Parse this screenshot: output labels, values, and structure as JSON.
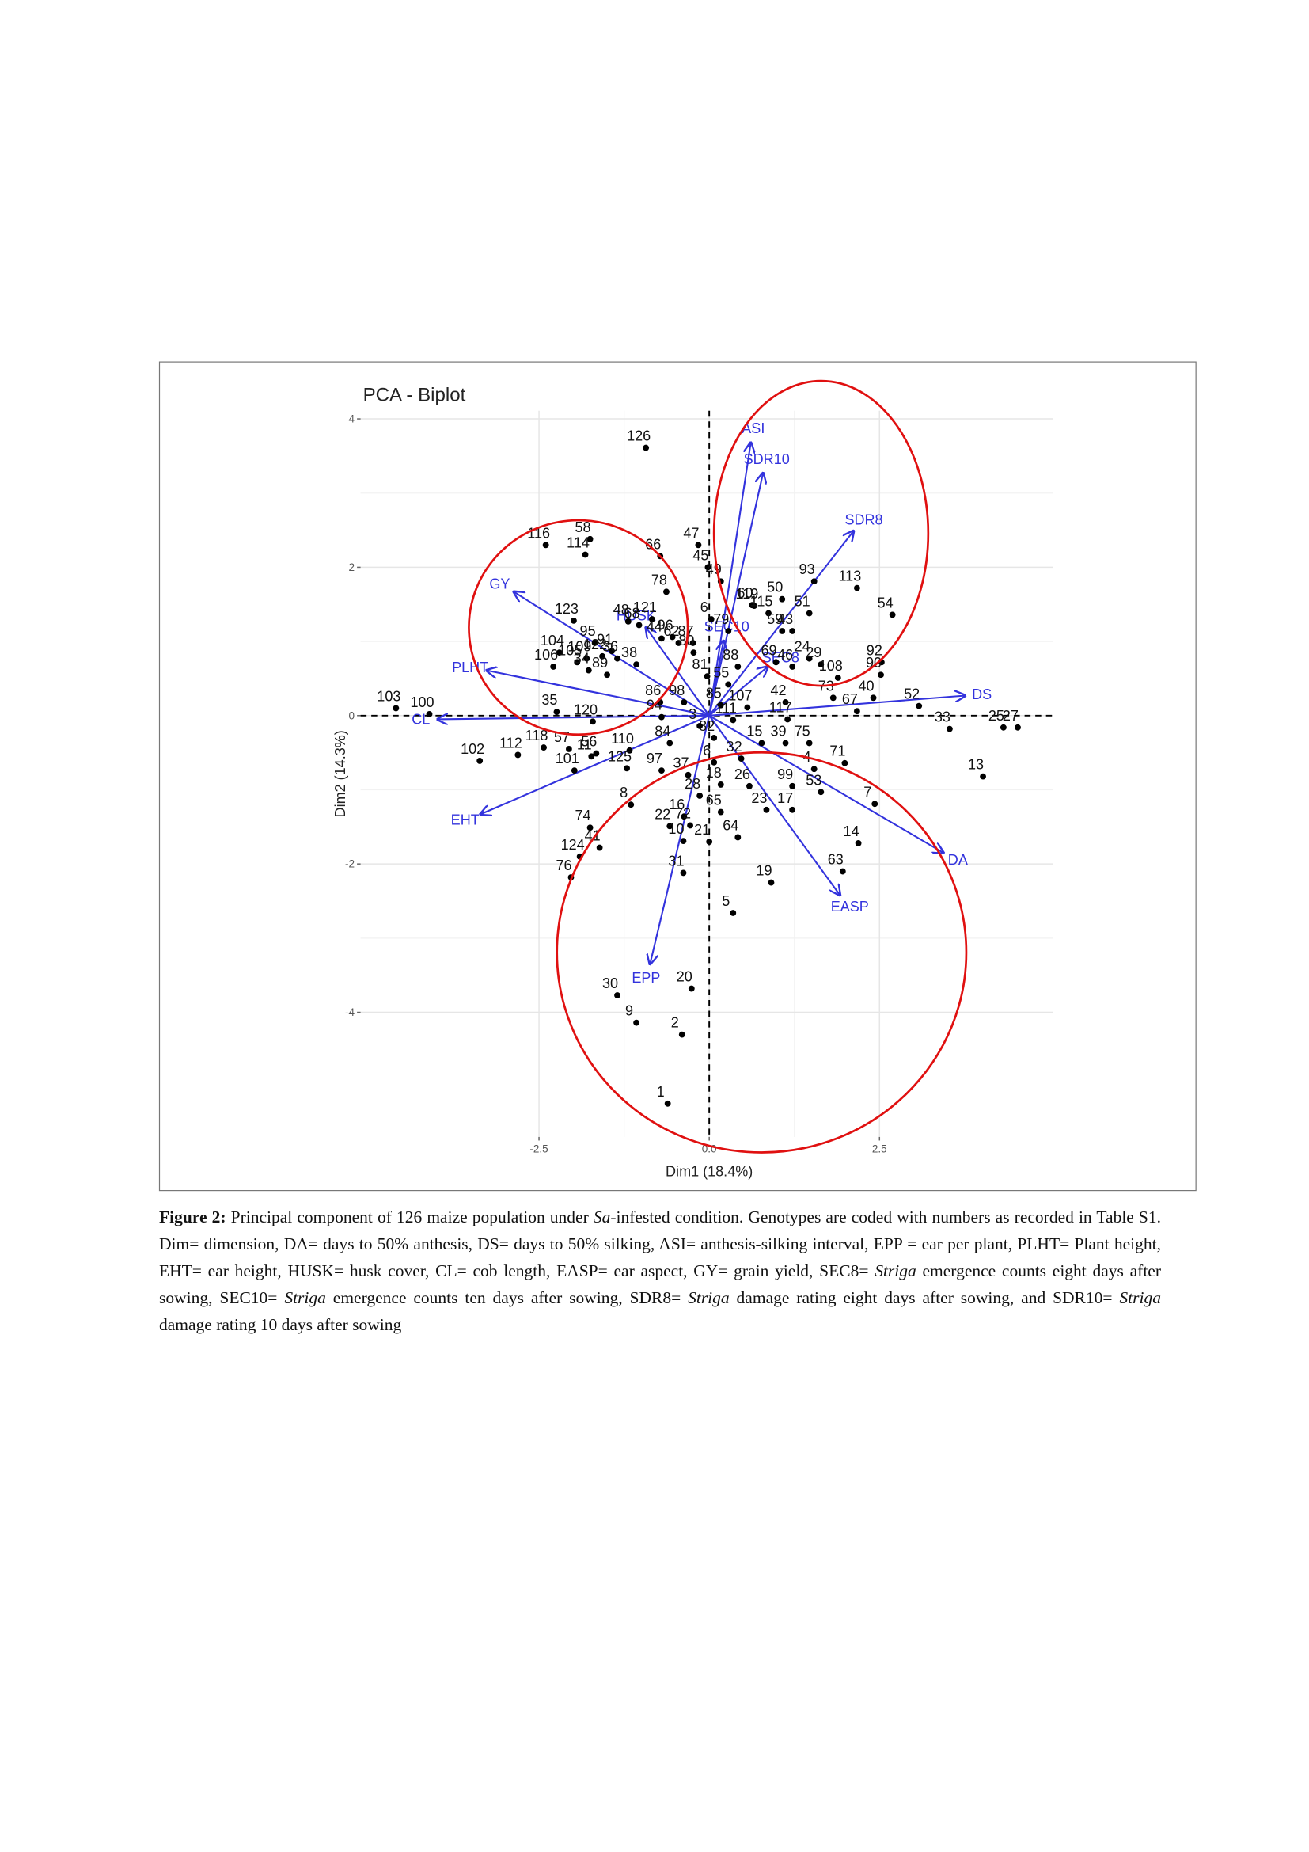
{
  "chart_data": {
    "type": "biplot",
    "title": "PCA - Biplot",
    "x_label": "Dim1 (18.4%)",
    "y_label": "Dim2 (14.3%)",
    "xlim": [
      -5.12,
      5.05
    ],
    "ylim": [
      -5.68,
      4.11
    ],
    "xticks": [
      {
        "value": -2.5,
        "label": "-2.5"
      },
      {
        "value": 0,
        "label": "0.0"
      },
      {
        "value": 2.5,
        "label": "2.5"
      }
    ],
    "yticks": [
      -4,
      -2,
      0,
      2,
      4
    ],
    "grid": true,
    "points": {
      "color": "#000000",
      "labels": [
        "126",
        "116",
        "58",
        "114",
        "66",
        "47",
        "45",
        "78",
        "121",
        "49",
        "50",
        "93",
        "54",
        "119",
        "113",
        "123",
        "48",
        "68",
        "62",
        "6",
        "60",
        "115",
        "51",
        "104",
        "95",
        "96",
        "87",
        "79",
        "59",
        "43",
        "24",
        "109",
        "91",
        "44",
        "122",
        "69",
        "29",
        "92",
        "105",
        "80",
        "88",
        "34",
        "36",
        "38",
        "89",
        "106",
        "108",
        "90",
        "46",
        "55",
        "81",
        "73",
        "40",
        "35",
        "86",
        "98",
        "85",
        "107",
        "42",
        "103",
        "100",
        "52",
        "25",
        "27",
        "33",
        "13",
        "67",
        "117",
        "111",
        "82",
        "118",
        "120",
        "56",
        "94",
        "3",
        "112",
        "102",
        "57",
        "11",
        "110",
        "84",
        "15",
        "39",
        "75",
        "6",
        "32",
        "4",
        "71",
        "7",
        "101",
        "125",
        "97",
        "37",
        "26",
        "99",
        "53",
        "18",
        "28",
        "16",
        "8",
        "74",
        "65",
        "23",
        "17",
        "14",
        "72",
        "22",
        "41",
        "64",
        "10",
        "21",
        "124",
        "76",
        "19",
        "63",
        "31",
        "5",
        "30",
        "20",
        "9",
        "2",
        "1"
      ],
      "x": [
        -0.93,
        -2.4,
        -1.75,
        -1.82,
        -0.72,
        -0.16,
        -0.02,
        -0.63,
        -0.84,
        0.17,
        1.07,
        1.54,
        2.69,
        0.66,
        2.17,
        -1.99,
        -1.19,
        -1.03,
        -0.45,
        0.03,
        0.63,
        0.87,
        1.47,
        -2.2,
        -1.68,
        -0.54,
        -0.24,
        0.28,
        1.07,
        1.22,
        1.47,
        -1.8,
        -1.43,
        -0.7,
        -1.57,
        0.98,
        1.64,
        2.53,
        -1.94,
        -0.23,
        0.42,
        -1.77,
        -1.35,
        -1.07,
        -1.5,
        -2.29,
        1.89,
        2.52,
        1.22,
        0.28,
        -0.03,
        1.82,
        2.41,
        -2.24,
        -0.72,
        -0.37,
        0.17,
        0.56,
        1.12,
        -4.6,
        -4.11,
        3.08,
        4.32,
        4.53,
        3.53,
        4.02,
        2.17,
        1.15,
        0.35,
        0.07,
        -2.43,
        -1.71,
        -1.66,
        -0.7,
        -0.14,
        -2.81,
        -3.37,
        -2.06,
        -1.73,
        -1.17,
        -0.58,
        0.77,
        1.12,
        1.47,
        0.07,
        0.47,
        1.54,
        1.99,
        2.43,
        -1.98,
        -1.21,
        -0.7,
        -0.31,
        0.59,
        1.22,
        1.64,
        0.17,
        -0.14,
        -0.37,
        -1.15,
        -1.75,
        0.17,
        0.84,
        1.22,
        2.19,
        -0.28,
        -0.58,
        -1.61,
        0.42,
        -0.38,
        0,
        -1.9,
        -2.03,
        0.91,
        1.96,
        -0.38,
        0.35,
        -1.35,
        -0.26,
        -1.07,
        -0.4,
        -0.61
      ],
      "y": [
        3.61,
        2.3,
        2.38,
        2.17,
        2.15,
        2.3,
        2.0,
        1.67,
        1.3,
        1.81,
        1.57,
        1.81,
        1.36,
        1.48,
        1.72,
        1.28,
        1.27,
        1.22,
        0.98,
        1.3,
        1.49,
        1.38,
        1.38,
        0.85,
        0.98,
        1.06,
        0.98,
        1.14,
        1.14,
        1.14,
        0.77,
        0.77,
        0.87,
        1.04,
        0.8,
        0.72,
        0.69,
        0.72,
        0.72,
        0.85,
        0.66,
        0.61,
        0.77,
        0.69,
        0.55,
        0.66,
        0.51,
        0.55,
        0.66,
        0.42,
        0.53,
        0.24,
        0.24,
        0.05,
        0.18,
        0.18,
        0.14,
        0.11,
        0.18,
        0.1,
        0.02,
        0.13,
        -0.16,
        -0.16,
        -0.18,
        -0.82,
        0.06,
        -0.05,
        -0.06,
        -0.3,
        -0.43,
        -0.08,
        -0.51,
        -0.02,
        -0.14,
        -0.53,
        -0.61,
        -0.45,
        -0.55,
        -0.47,
        -0.37,
        -0.37,
        -0.37,
        -0.37,
        -0.63,
        -0.58,
        -0.72,
        -0.64,
        -1.19,
        -0.74,
        -0.71,
        -0.74,
        -0.8,
        -0.95,
        -0.95,
        -1.03,
        -0.93,
        -1.08,
        -1.36,
        -1.2,
        -1.51,
        -1.3,
        -1.27,
        -1.27,
        -1.72,
        -1.48,
        -1.49,
        -1.78,
        -1.64,
        -1.69,
        -1.7,
        -1.9,
        -2.18,
        -2.25,
        -2.1,
        -2.12,
        -2.66,
        -3.77,
        -3.68,
        -4.14,
        -4.3,
        -5.23
      ]
    },
    "loadings": {
      "color": "#3333dd",
      "names": [
        "ASI",
        "SDR10",
        "SDR8",
        "GY",
        "HUSK",
        "PLHT",
        "SEC10",
        "SEC8",
        "DS",
        "CL",
        "EHT",
        "DA",
        "EASP",
        "EPP"
      ],
      "x": [
        0.61,
        0.79,
        2.12,
        -2.87,
        -0.93,
        -3.27,
        0.21,
        0.86,
        3.76,
        -3.99,
        -3.36,
        3.44,
        1.92,
        -0.87
      ],
      "y": [
        3.68,
        3.27,
        2.49,
        1.67,
        1.19,
        0.61,
        1.01,
        0.66,
        0.27,
        -0.05,
        -1.33,
        -1.85,
        -2.42,
        -3.35
      ]
    }
  },
  "caption": {
    "parts": [
      "Figure 2:",
      " Principal component of 126 maize population under ",
      "Sa",
      "-infested condition. Genotypes are coded with numbers as recorded in Table S1. Dim= dimension, DA= days to 50% anthesis, DS= days to 50% silking, ASI= anthesis-silking interval, EPP = ear per plant, PLHT= Plant height, EHT= ear height, HUSK= husk cover, CL= cob length, EASP= ear aspect, GY= grain yield, SEC8= ",
      "Striga",
      " emergence counts eight days after sowing, SEC10= ",
      "Striga",
      " emergence counts ten days after sowing, SDR8= ",
      "Striga",
      " damage rating eight days after sowing, and SDR10= ",
      "Striga",
      " damage rating 10 days after sowing"
    ]
  }
}
